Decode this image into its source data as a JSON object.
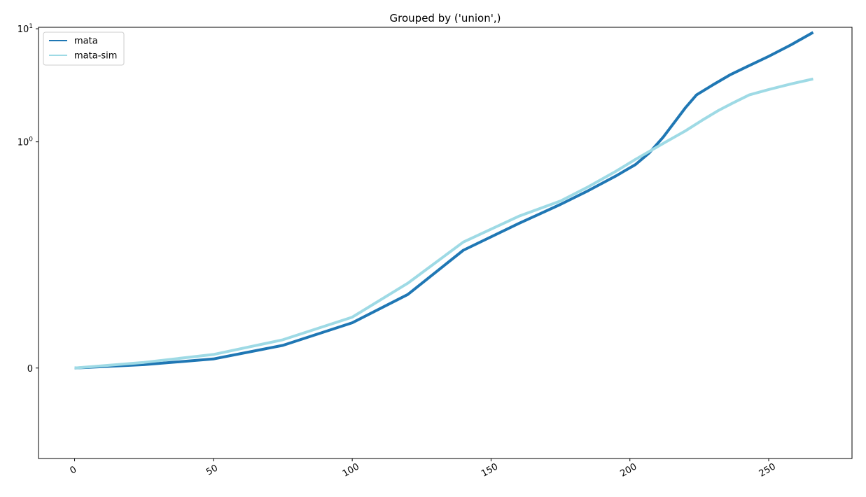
{
  "chart_data": {
    "type": "line",
    "title": "Grouped by ('union',)",
    "xlabel": "",
    "ylabel": "",
    "x_ticks": [
      0,
      50,
      100,
      150,
      200,
      250
    ],
    "y_scale": "symlog",
    "y_ticks": [
      {
        "value": 0,
        "base": "0",
        "exp": ""
      },
      {
        "value": 1,
        "base": "10",
        "exp": "0"
      },
      {
        "value": 10,
        "base": "10",
        "exp": "1"
      }
    ],
    "xlim": [
      -13,
      280
    ],
    "ylim": [
      -0.08,
      10.3
    ],
    "legend": "top-left",
    "grid": false,
    "series": [
      {
        "name": "mata",
        "color": "#1f77b4",
        "points": [
          [
            0,
            0
          ],
          [
            25,
            0.003
          ],
          [
            50,
            0.008
          ],
          [
            75,
            0.02
          ],
          [
            100,
            0.04
          ],
          [
            120,
            0.065
          ],
          [
            140,
            0.11
          ],
          [
            160,
            0.19
          ],
          [
            175,
            0.28
          ],
          [
            185,
            0.37
          ],
          [
            195,
            0.5
          ],
          [
            202,
            0.63
          ],
          [
            207,
            0.8
          ],
          [
            212,
            1.1
          ],
          [
            217,
            1.6
          ],
          [
            220,
            2.0
          ],
          [
            224,
            2.6
          ],
          [
            230,
            3.2
          ],
          [
            236,
            3.9
          ],
          [
            242,
            4.6
          ],
          [
            250,
            5.7
          ],
          [
            258,
            7.2
          ],
          [
            266,
            9.3
          ]
        ]
      },
      {
        "name": "mata-sim",
        "color": "#9edae5",
        "points": [
          [
            0,
            0
          ],
          [
            25,
            0.005
          ],
          [
            50,
            0.012
          ],
          [
            75,
            0.025
          ],
          [
            100,
            0.045
          ],
          [
            120,
            0.075
          ],
          [
            140,
            0.13
          ],
          [
            160,
            0.22
          ],
          [
            175,
            0.3
          ],
          [
            185,
            0.4
          ],
          [
            195,
            0.55
          ],
          [
            202,
            0.7
          ],
          [
            208,
            0.85
          ],
          [
            213,
            1.0
          ],
          [
            220,
            1.25
          ],
          [
            226,
            1.55
          ],
          [
            232,
            1.9
          ],
          [
            237,
            2.2
          ],
          [
            243,
            2.6
          ],
          [
            250,
            2.9
          ],
          [
            258,
            3.25
          ],
          [
            266,
            3.6
          ]
        ]
      }
    ]
  }
}
